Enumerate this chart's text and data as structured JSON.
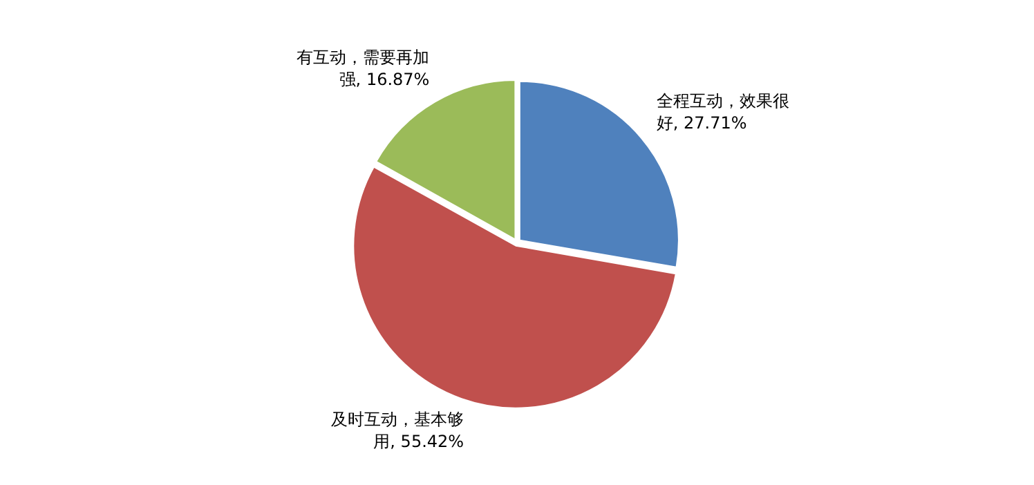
{
  "chart_data": {
    "type": "pie",
    "categories": [
      "全程互动，效果很好",
      "及时互动，基本够用",
      "有互动，需要再加强"
    ],
    "values": [
      27.71,
      55.42,
      16.87
    ],
    "colors": [
      "#4f81bd",
      "#c0504d",
      "#9bbb59"
    ],
    "value_labels": [
      "27.71%",
      "55.42%",
      "16.87%"
    ],
    "legend": false
  }
}
